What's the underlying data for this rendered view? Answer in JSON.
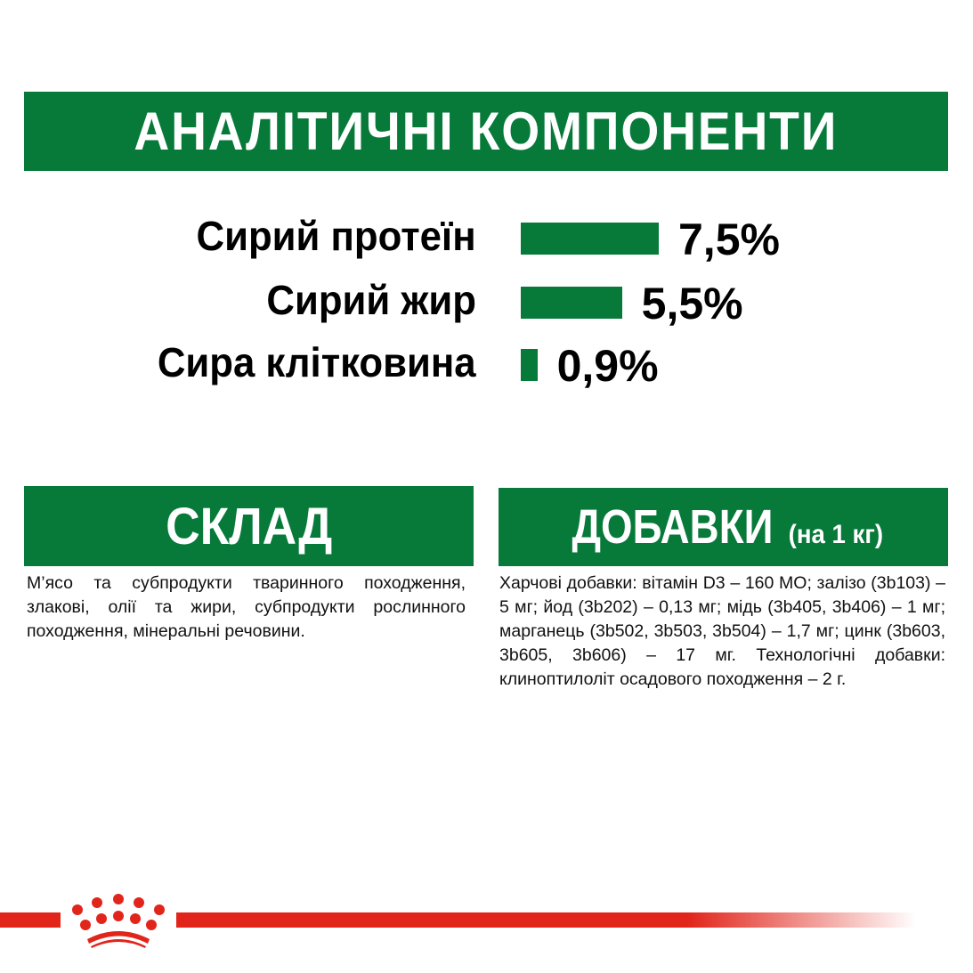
{
  "header": {
    "title": "АНАЛІТИЧНІ КОМПОНЕНТИ"
  },
  "analytics": [
    {
      "label": "Сирий протеїн",
      "value": "7,5%",
      "percent": 7.5
    },
    {
      "label": "Сирий жир",
      "value": "5,5%",
      "percent": 5.5
    },
    {
      "label": "Сира клітковина",
      "value": "0,9%",
      "percent": 0.9
    }
  ],
  "composition": {
    "title": "СКЛАД",
    "text": "М’ясо та субпродукти тваринного походження, злакові, олії та жири, субпродукти рослинного походження, мінеральні речовини."
  },
  "additives": {
    "title": "ДОБАВКИ",
    "subtitle": "(на 1 кг)",
    "text": "Харчові добавки: вітамін D3 – 160 МО; залізо (3b103) – 5 мг; йод (3b202) – 0,13 мг; мідь (3b405, 3b406) – 1 мг; марганець (3b502, 3b503, 3b504) – 1,7 мг; цинк (3b603, 3b605, 3b606) – 17 мг. Технологічні добавки: клиноптилоліт осадового походження – 2 г."
  },
  "colors": {
    "green": "#077a3a",
    "red": "#e1251b"
  },
  "logo": {
    "icon": "royal-canin-crown-icon"
  }
}
